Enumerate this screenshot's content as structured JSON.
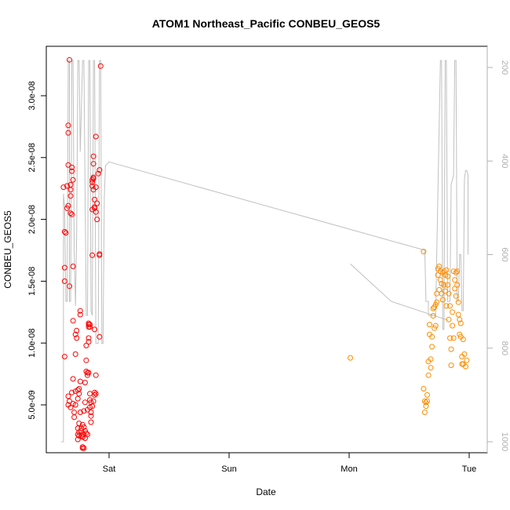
{
  "chart_data": {
    "type": "scatter",
    "title": "ATOM1 Northeast_Pacific CONBEU_GEOS5",
    "xlabel": "Date",
    "ylabel": "CONBEU_GEOS5",
    "x_ticks": [
      {
        "label": "Sat",
        "day": 1.0
      },
      {
        "label": "Sun",
        "day": 2.0
      },
      {
        "label": "Mon",
        "day": 3.0
      },
      {
        "label": "Tue",
        "day": 4.0
      }
    ],
    "xlim": [
      0.56,
      4.12
    ],
    "y_ticks": [
      5e-09,
      1e-08,
      1.5e-08,
      2e-08,
      2.5e-08,
      3e-08
    ],
    "y_tick_labels": [
      "5.0e-09",
      "1.0e-08",
      "1.5e-08",
      "2.0e-08",
      "2.5e-08",
      "3.0e-08"
    ],
    "ylim": [
      1.5e-09,
      3.4e-08
    ],
    "y2_ticks": [
      200,
      400,
      600,
      800,
      1000
    ],
    "y2_tick_labels": [
      "200",
      "400",
      "600",
      "800",
      "1000"
    ],
    "y2lim": [
      1010,
      185
    ],
    "y2_reversed": true,
    "colors": {
      "series_sat": "#ff0000",
      "series_tue": "#ff8c00",
      "pressure_line": "#c0c0c0"
    },
    "series": [
      {
        "color": "#ff0000",
        "points": [
          [
            0.62,
            2.26e-08
          ],
          [
            0.63,
            1.9e-08
          ],
          [
            0.63,
            1.61e-08
          ],
          [
            0.63,
            1.5e-08
          ],
          [
            0.63,
            8.9e-09
          ],
          [
            0.64,
            1.89e-08
          ],
          [
            0.65,
            2.27e-08
          ],
          [
            0.65,
            2.09e-08
          ],
          [
            0.66,
            2.11e-08
          ],
          [
            0.66,
            2.44e-08
          ],
          [
            0.66,
            2.76e-08
          ],
          [
            0.66,
            2.7e-08
          ],
          [
            0.67,
            3.29e-08
          ],
          [
            0.67,
            1.46e-08
          ],
          [
            0.68,
            2.28e-08
          ],
          [
            0.68,
            2.24e-08
          ],
          [
            0.68,
            2.19e-08
          ],
          [
            0.68,
            2.05e-08
          ],
          [
            0.69,
            2.42e-08
          ],
          [
            0.69,
            2.39e-08
          ],
          [
            0.69,
            2.04e-08
          ],
          [
            0.7,
            2.32e-08
          ],
          [
            0.7,
            1.62e-08
          ],
          [
            0.7,
            1.18e-08
          ],
          [
            0.66,
            5.7e-09
          ],
          [
            0.66,
            5e-09
          ],
          [
            0.67,
            5.3e-09
          ],
          [
            0.68,
            4.8e-09
          ],
          [
            0.69,
            6e-09
          ],
          [
            0.7,
            7.1e-09
          ],
          [
            0.7,
            5.1e-09
          ],
          [
            0.71,
            4.4e-09
          ],
          [
            0.71,
            4e-09
          ],
          [
            0.72,
            5e-09
          ],
          [
            0.72,
            6.1e-09
          ],
          [
            0.72,
            9.1e-09
          ],
          [
            0.72,
            1.07e-08
          ],
          [
            0.73,
            1.1e-08
          ],
          [
            0.73,
            1.04e-08
          ],
          [
            0.74,
            6.2e-09
          ],
          [
            0.74,
            5.5e-09
          ],
          [
            0.74,
            3.1e-09
          ],
          [
            0.74,
            2.6e-09
          ],
          [
            0.74,
            2.2e-09
          ],
          [
            0.75,
            3.5e-09
          ],
          [
            0.75,
            2.8e-09
          ],
          [
            0.75,
            2.5e-09
          ],
          [
            0.75,
            5.9e-09
          ],
          [
            0.75,
            6.3e-09
          ],
          [
            0.76,
            1.26e-08
          ],
          [
            0.76,
            1.23e-08
          ],
          [
            0.76,
            6.9e-09
          ],
          [
            0.76,
            4.4e-09
          ],
          [
            0.77,
            2.9e-09
          ],
          [
            0.77,
            3.1e-09
          ],
          [
            0.77,
            2.5e-09
          ],
          [
            0.78,
            1.5e-09
          ],
          [
            0.78,
            1.6e-09
          ],
          [
            0.78,
            2.4e-09
          ],
          [
            0.78,
            3.4e-09
          ],
          [
            0.79,
            1.5e-09
          ],
          [
            0.79,
            2.6e-09
          ],
          [
            0.79,
            3.2e-09
          ],
          [
            0.79,
            4.5e-09
          ],
          [
            0.8,
            6.8e-09
          ],
          [
            0.8,
            5.2e-09
          ],
          [
            0.8,
            2.9e-09
          ],
          [
            0.8,
            2.3e-09
          ],
          [
            0.81,
            8.6e-09
          ],
          [
            0.81,
            9.8e-09
          ],
          [
            0.81,
            7.7e-09
          ],
          [
            0.81,
            2.7e-09
          ],
          [
            0.82,
            7.6e-09
          ],
          [
            0.82,
            7.4e-09
          ],
          [
            0.82,
            4.6e-09
          ],
          [
            0.82,
            2.6e-09
          ],
          [
            0.83,
            1.13e-08
          ],
          [
            0.83,
            1.15e-08
          ],
          [
            0.83,
            1.16e-08
          ],
          [
            0.83,
            1.04e-08
          ],
          [
            0.83,
            1.01e-08
          ],
          [
            0.83,
            7.6e-09
          ],
          [
            0.84,
            1.13e-08
          ],
          [
            0.84,
            1.15e-08
          ],
          [
            0.84,
            5.9e-09
          ],
          [
            0.84,
            5.4e-09
          ],
          [
            0.84,
            4.8e-09
          ],
          [
            0.85,
            5.2e-09
          ],
          [
            0.85,
            4.4e-09
          ],
          [
            0.85,
            4.1e-09
          ],
          [
            0.85,
            3.6e-09
          ],
          [
            0.86,
            1.71e-08
          ],
          [
            0.86,
            2.08e-08
          ],
          [
            0.86,
            2.3e-08
          ],
          [
            0.86,
            2.32e-08
          ],
          [
            0.86,
            2.27e-08
          ],
          [
            0.86,
            4.9e-09
          ],
          [
            0.87,
            2.51e-08
          ],
          [
            0.87,
            2.45e-08
          ],
          [
            0.87,
            2.33e-08
          ],
          [
            0.87,
            2.34e-08
          ],
          [
            0.87,
            2.24e-08
          ],
          [
            0.87,
            5.3e-09
          ],
          [
            0.88,
            2.16e-08
          ],
          [
            0.88,
            2.1e-08
          ],
          [
            0.88,
            2.09e-08
          ],
          [
            0.88,
            1.11e-08
          ],
          [
            0.88,
            6e-09
          ],
          [
            0.88,
            5.8e-09
          ],
          [
            0.89,
            2.67e-08
          ],
          [
            0.89,
            2.26e-08
          ],
          [
            0.89,
            2.06e-08
          ],
          [
            0.89,
            7.4e-09
          ],
          [
            0.89,
            5.9e-09
          ],
          [
            0.9,
            2.13e-08
          ],
          [
            0.9,
            2e-08
          ],
          [
            0.91,
            2.37e-08
          ],
          [
            0.92,
            2.4e-08
          ],
          [
            0.92,
            1.72e-08
          ],
          [
            0.92,
            1.71e-08
          ],
          [
            0.92,
            1.05e-08
          ],
          [
            0.93,
            3.24e-08
          ]
        ]
      },
      {
        "color": "#ff8c00",
        "points": [
          [
            3.01,
            8.8e-09
          ],
          [
            3.62,
            1.74e-08
          ],
          [
            3.62,
            6.3e-09
          ],
          [
            3.63,
            5.3e-09
          ],
          [
            3.63,
            4.4e-09
          ],
          [
            3.64,
            5.2e-09
          ],
          [
            3.64,
            4.9e-09
          ],
          [
            3.65,
            5.8e-09
          ],
          [
            3.65,
            5.3e-09
          ],
          [
            3.66,
            8.5e-09
          ],
          [
            3.66,
            7.4e-09
          ],
          [
            3.67,
            1.07e-08
          ],
          [
            3.67,
            1.15e-08
          ],
          [
            3.68,
            8.7e-09
          ],
          [
            3.68,
            8e-09
          ],
          [
            3.69,
            1.05e-08
          ],
          [
            3.69,
            9.7e-09
          ],
          [
            3.7,
            1.28e-08
          ],
          [
            3.7,
            1.22e-08
          ],
          [
            3.71,
            1.29e-08
          ],
          [
            3.71,
            1.12e-08
          ],
          [
            3.72,
            1.31e-08
          ],
          [
            3.72,
            1.14e-08
          ],
          [
            3.73,
            1.4e-08
          ],
          [
            3.73,
            1.33e-08
          ],
          [
            3.74,
            1.6e-08
          ],
          [
            3.74,
            1.55e-08
          ],
          [
            3.75,
            1.62e-08
          ],
          [
            3.75,
            1.43e-08
          ],
          [
            3.76,
            1.58e-08
          ],
          [
            3.76,
            1.51e-08
          ],
          [
            3.77,
            1.48e-08
          ],
          [
            3.77,
            1.4e-08
          ],
          [
            3.78,
            1.57e-08
          ],
          [
            3.78,
            1.35e-08
          ],
          [
            3.79,
            1.58e-08
          ],
          [
            3.79,
            1.47e-08
          ],
          [
            3.8,
            1.55e-08
          ],
          [
            3.8,
            1.42e-08
          ],
          [
            3.81,
            1.59e-08
          ],
          [
            3.81,
            1.3e-08
          ],
          [
            3.82,
            1.54e-08
          ],
          [
            3.82,
            1.47e-08
          ],
          [
            3.83,
            1.4e-08
          ],
          [
            3.83,
            1.19e-08
          ],
          [
            3.84,
            1.3e-08
          ],
          [
            3.84,
            1.04e-08
          ],
          [
            3.85,
            9.5e-09
          ],
          [
            3.85,
            8.2e-09
          ],
          [
            3.86,
            1.25e-08
          ],
          [
            3.86,
            1.14e-08
          ],
          [
            3.87,
            1.04e-08
          ],
          [
            3.87,
            1.58e-08
          ],
          [
            3.88,
            1.51e-08
          ],
          [
            3.88,
            1.44e-08
          ],
          [
            3.89,
            1.57e-08
          ],
          [
            3.89,
            1.38e-08
          ],
          [
            3.9,
            1.58e-08
          ],
          [
            3.9,
            1.47e-08
          ],
          [
            3.91,
            1.33e-08
          ],
          [
            3.91,
            1.23e-08
          ],
          [
            3.92,
            1.19e-08
          ],
          [
            3.92,
            1.07e-08
          ],
          [
            3.93,
            1.16e-08
          ],
          [
            3.93,
            1.05e-08
          ],
          [
            3.94,
            8.9e-09
          ],
          [
            3.94,
            8.3e-09
          ],
          [
            3.95,
            1.03e-08
          ],
          [
            3.95,
            8.3e-09
          ],
          [
            3.96,
            9.1e-09
          ],
          [
            3.97,
            8.1e-09
          ],
          [
            3.98,
            8.6e-09
          ]
        ]
      }
    ],
    "pressure_line": [
      [
        0.6,
        1000
      ],
      [
        0.62,
        1000
      ],
      [
        0.62,
        470
      ],
      [
        0.63,
        500
      ],
      [
        0.64,
        700
      ],
      [
        0.65,
        700
      ],
      [
        0.66,
        185
      ],
      [
        0.67,
        185
      ],
      [
        0.67,
        700
      ],
      [
        0.68,
        700
      ],
      [
        0.69,
        185
      ],
      [
        0.7,
        185
      ],
      [
        0.71,
        590
      ],
      [
        0.72,
        710
      ],
      [
        0.73,
        560
      ],
      [
        0.74,
        185
      ],
      [
        0.75,
        185
      ],
      [
        0.76,
        380
      ],
      [
        0.78,
        185
      ],
      [
        0.79,
        185
      ],
      [
        0.81,
        730
      ],
      [
        0.82,
        730
      ],
      [
        0.83,
        185
      ],
      [
        0.84,
        185
      ],
      [
        0.85,
        720
      ],
      [
        0.86,
        730
      ],
      [
        0.87,
        185
      ],
      [
        0.88,
        185
      ],
      [
        0.89,
        790
      ],
      [
        0.91,
        790
      ],
      [
        0.92,
        185
      ],
      [
        0.93,
        185
      ],
      [
        0.94,
        790
      ],
      [
        0.95,
        790
      ],
      [
        0.96,
        480
      ],
      [
        0.97,
        410
      ],
      [
        0.99,
        405
      ],
      [
        1.0,
        402
      ],
      [
        3.62,
        590
      ],
      [
        3.63,
        590
      ],
      [
        3.64,
        700
      ],
      [
        3.66,
        700
      ],
      [
        3.66,
        730
      ],
      [
        3.72,
        730
      ],
      [
        3.76,
        185
      ],
      [
        3.77,
        185
      ],
      [
        3.78,
        760
      ],
      [
        3.79,
        760
      ],
      [
        3.8,
        185
      ],
      [
        3.81,
        185
      ],
      [
        3.82,
        700
      ],
      [
        3.84,
        700
      ],
      [
        3.85,
        450
      ],
      [
        3.87,
        430
      ],
      [
        3.88,
        185
      ],
      [
        3.89,
        185
      ],
      [
        3.9,
        700
      ],
      [
        3.91,
        700
      ],
      [
        3.92,
        600
      ],
      [
        3.93,
        600
      ],
      [
        3.94,
        720
      ],
      [
        3.95,
        720
      ],
      [
        3.96,
        440
      ],
      [
        3.97,
        420
      ],
      [
        3.98,
        420
      ],
      [
        3.99,
        430
      ],
      [
        3.99,
        600
      ]
    ],
    "pressure_line_2": [
      [
        3.01,
        620
      ],
      [
        3.35,
        700
      ],
      [
        3.82,
        740
      ]
    ]
  }
}
